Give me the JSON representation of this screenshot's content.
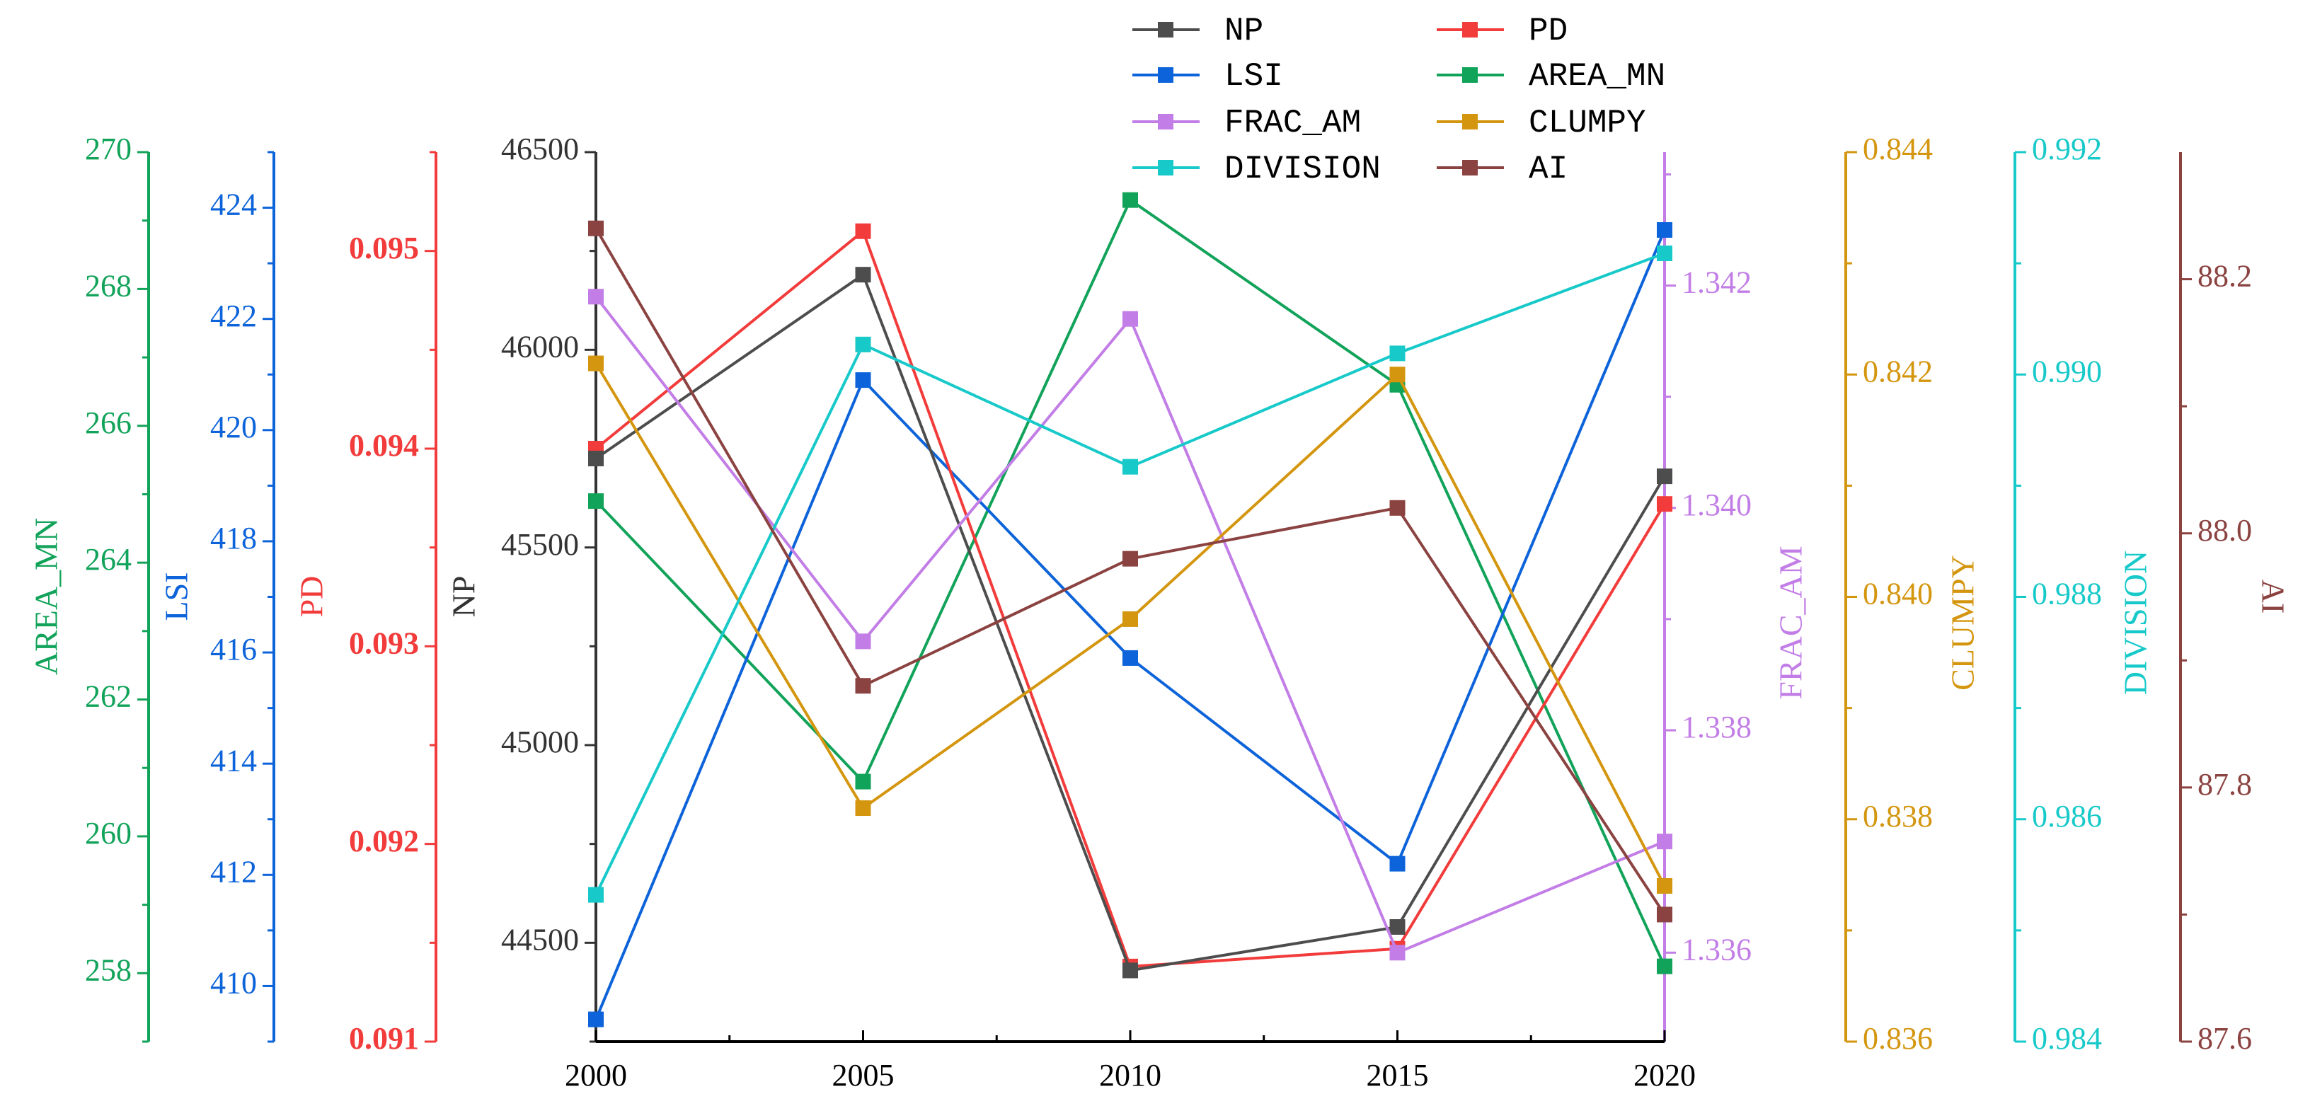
{
  "chart_data": {
    "type": "line",
    "title": "",
    "x": [
      2000,
      2005,
      2010,
      2015,
      2020
    ],
    "xlabel": "",
    "xticks": [
      "2000",
      "2005",
      "2010",
      "2015",
      "2020"
    ],
    "series": [
      {
        "name": "NP",
        "axis": "NP",
        "color": "#4d4d4d",
        "values": [
          45725,
          46190,
          44430,
          44540,
          45680
        ]
      },
      {
        "name": "PD",
        "axis": "PD",
        "color": "#f23b3b",
        "values": [
          0.094,
          0.0951,
          0.09138,
          0.09147,
          0.09372
        ]
      },
      {
        "name": "LSI",
        "axis": "LSI",
        "color": "#0d63d9",
        "values": [
          409.4,
          420.9,
          415.9,
          412.2,
          423.6
        ]
      },
      {
        "name": "AREA_MN",
        "axis": "AREA_MN",
        "color": "#12a35a",
        "values": [
          264.9,
          260.8,
          269.3,
          266.6,
          258.1
        ]
      },
      {
        "name": "FRAC_AM",
        "axis": "FRAC_AM",
        "color": "#c27ee6",
        "values": [
          1.3419,
          1.3388,
          1.3417,
          1.336,
          1.337
        ]
      },
      {
        "name": "CLUMPY",
        "axis": "CLUMPY",
        "color": "#d4960f",
        "values": [
          0.8421,
          0.8381,
          0.8398,
          0.842,
          0.8374
        ]
      },
      {
        "name": "DIVISION",
        "axis": "DIVISION",
        "color": "#18c9c9",
        "values": [
          0.98532,
          0.99027,
          0.98917,
          0.99019,
          0.99109
        ]
      },
      {
        "name": "AI",
        "axis": "AI",
        "color": "#8b4341",
        "values": [
          88.24,
          87.88,
          87.98,
          88.02,
          87.7
        ]
      }
    ],
    "axes": {
      "NP": {
        "label": "NP",
        "side": "left",
        "color": "#333333",
        "ylim": [
          44250,
          46500
        ],
        "ticks": [
          "44500",
          "45000",
          "45500",
          "46000",
          "46500"
        ]
      },
      "PD": {
        "label": "PD",
        "side": "left",
        "color": "#f23b3b",
        "ylim": [
          0.091,
          0.0955
        ],
        "ticks": [
          "0.091",
          "0.092",
          "0.093",
          "0.094",
          "0.095"
        ]
      },
      "LSI": {
        "label": "LSI",
        "side": "left",
        "color": "#0d63d9",
        "ylim": [
          409,
          425
        ],
        "ticks": [
          "410",
          "412",
          "414",
          "416",
          "418",
          "420",
          "422",
          "424"
        ]
      },
      "AREA_MN": {
        "label": "AREA_MN",
        "side": "left",
        "color": "#12a35a",
        "ylim": [
          257,
          270
        ],
        "ticks": [
          "258",
          "260",
          "262",
          "264",
          "266",
          "268",
          "270"
        ]
      },
      "FRAC_AM": {
        "label": "FRAC_AM",
        "side": "right",
        "color": "#c27ee6",
        "ylim": [
          1.3352,
          1.3432
        ],
        "ticks": [
          "1.336",
          "1.338",
          "1.340",
          "1.342"
        ]
      },
      "CLUMPY": {
        "label": "CLUMPY",
        "side": "right",
        "color": "#d4960f",
        "ylim": [
          0.836,
          0.844
        ],
        "ticks": [
          "0.836",
          "0.838",
          "0.840",
          "0.842",
          "0.844"
        ]
      },
      "DIVISION": {
        "label": "DIVISION",
        "side": "right",
        "color": "#18c9c9",
        "ylim": [
          0.984,
          0.992
        ],
        "ticks": [
          "0.984",
          "0.986",
          "0.988",
          "0.990",
          "0.992"
        ]
      },
      "AI": {
        "label": "AI",
        "side": "right",
        "color": "#8b4341",
        "ylim": [
          87.6,
          88.3
        ],
        "ticks": [
          "87.6",
          "87.8",
          "88.0",
          "88.2"
        ]
      }
    },
    "legend": {
      "position": "top-center",
      "columns": 2,
      "entries": [
        "NP",
        "PD",
        "LSI",
        "AREA_MN",
        "FRAC_AM",
        "CLUMPY",
        "DIVISION",
        "AI"
      ]
    }
  }
}
